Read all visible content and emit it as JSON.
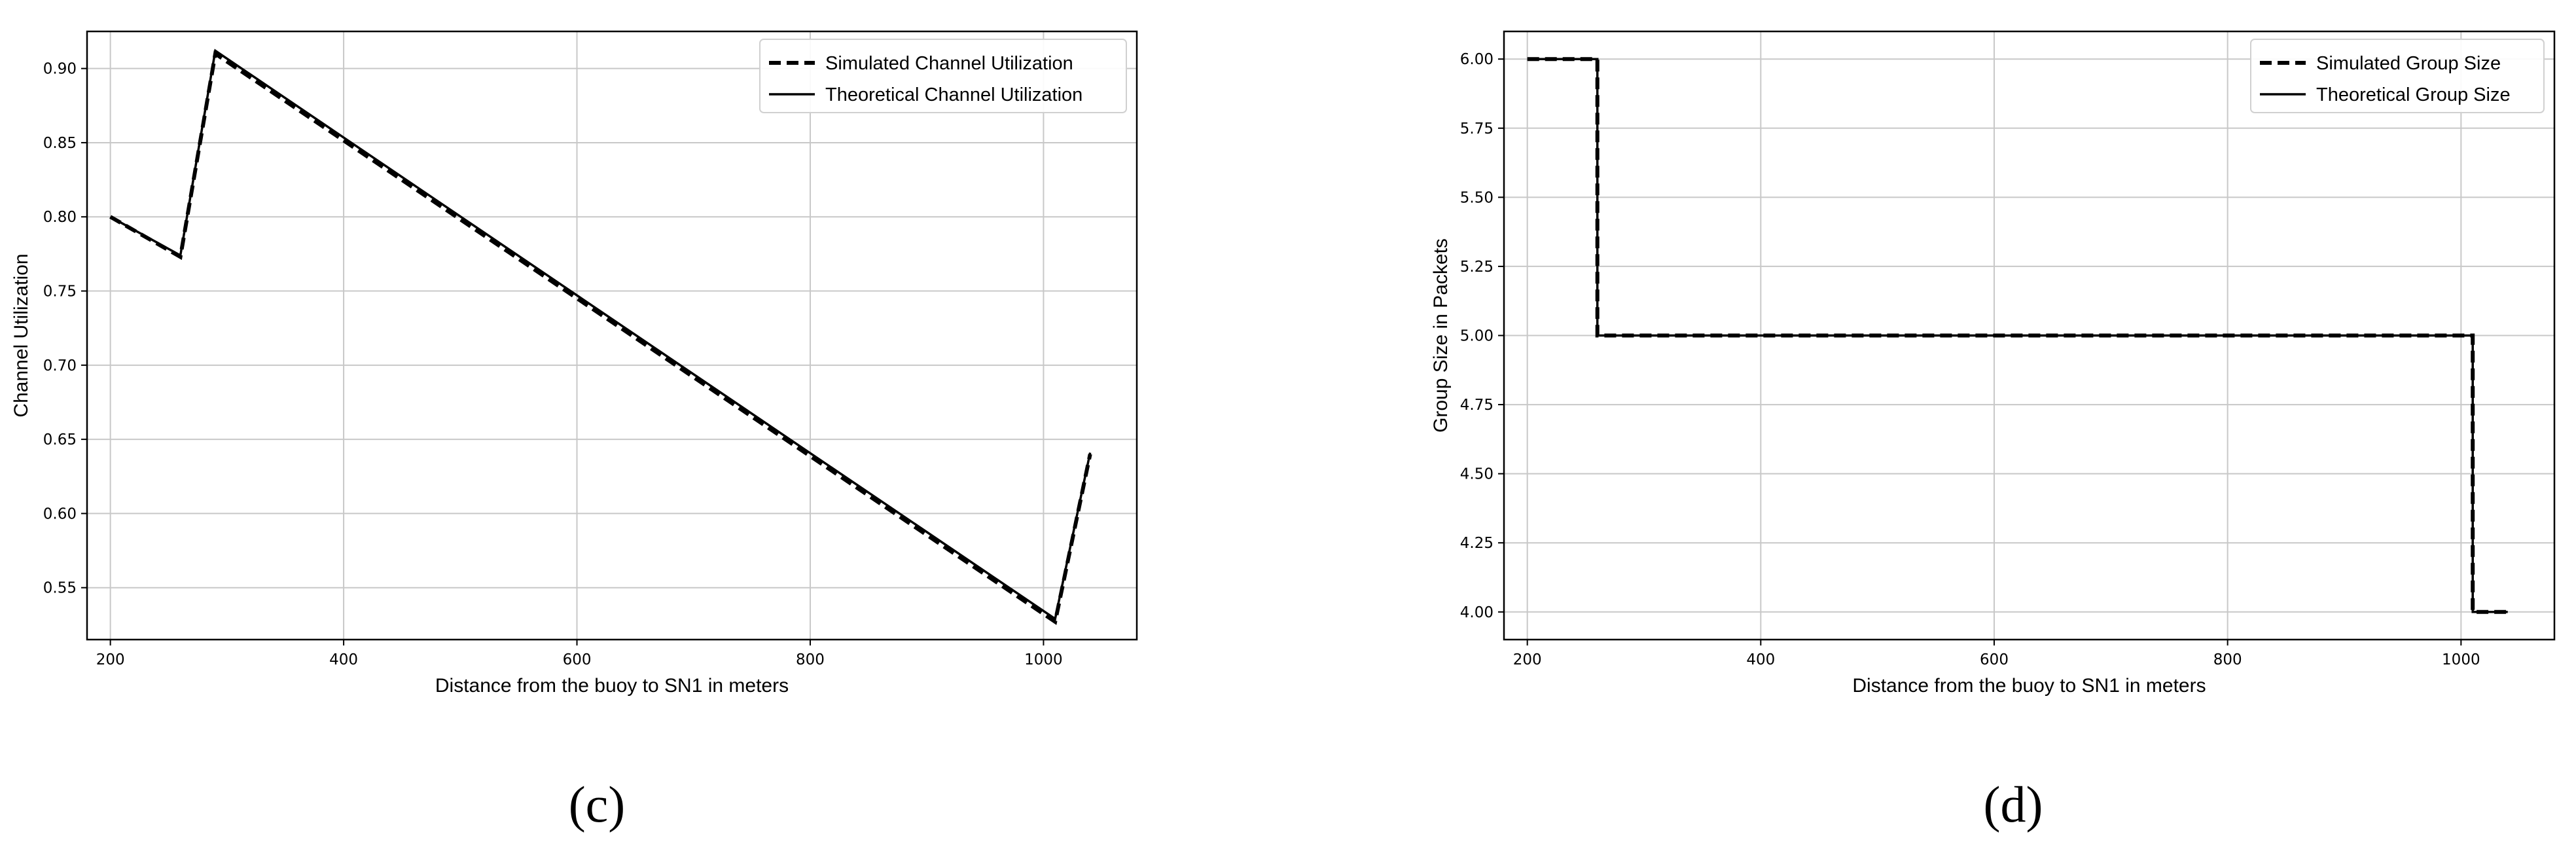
{
  "chart_data": [
    {
      "type": "line",
      "panel_label": "(c)",
      "xlabel": "Distance from the buoy to SN1 in meters",
      "ylabel": "Channel Utilization",
      "xlim": [
        180,
        1080
      ],
      "ylim": [
        0.515,
        0.925
      ],
      "xticks": [
        200,
        400,
        600,
        800,
        1000
      ],
      "yticks": [
        0.55,
        0.6,
        0.65,
        0.7,
        0.75,
        0.8,
        0.85,
        0.9
      ],
      "ytick_labels": [
        "0.55",
        "0.60",
        "0.65",
        "0.70",
        "0.75",
        "0.80",
        "0.85",
        "0.90"
      ],
      "grid": true,
      "legend_position": "top-right",
      "series": [
        {
          "name": "Simulated Channel Utilization",
          "style": "dashed",
          "x": [
            200,
            260,
            290,
            1010,
            1040
          ],
          "y": [
            0.8,
            0.773,
            0.91,
            0.527,
            0.64
          ]
        },
        {
          "name": "Theoretical Channel Utilization",
          "style": "solid",
          "x": [
            200,
            260,
            290,
            1010,
            1040
          ],
          "y": [
            0.8,
            0.774,
            0.912,
            0.529,
            0.641
          ]
        }
      ]
    },
    {
      "type": "line",
      "panel_label": "(d)",
      "xlabel": "Distance from the buoy to SN1 in meters",
      "ylabel": "Group Size in Packets",
      "xlim": [
        180,
        1080
      ],
      "ylim": [
        3.9,
        6.1
      ],
      "xticks": [
        200,
        400,
        600,
        800,
        1000
      ],
      "yticks": [
        4.0,
        4.25,
        4.5,
        4.75,
        5.0,
        5.25,
        5.5,
        5.75,
        6.0
      ],
      "ytick_labels": [
        "4.00",
        "4.25",
        "4.50",
        "4.75",
        "5.00",
        "5.25",
        "5.50",
        "5.75",
        "6.00"
      ],
      "grid": true,
      "legend_position": "top-right",
      "series": [
        {
          "name": "Simulated Group Size",
          "style": "dashed",
          "x": [
            200,
            260,
            260,
            1010,
            1010,
            1040
          ],
          "y": [
            6,
            6,
            5,
            5,
            4,
            4
          ]
        },
        {
          "name": "Theoretical Group Size",
          "style": "solid",
          "x": [
            200,
            260,
            260,
            1010,
            1010,
            1040
          ],
          "y": [
            6,
            6,
            5,
            5,
            4,
            4
          ]
        }
      ]
    }
  ]
}
